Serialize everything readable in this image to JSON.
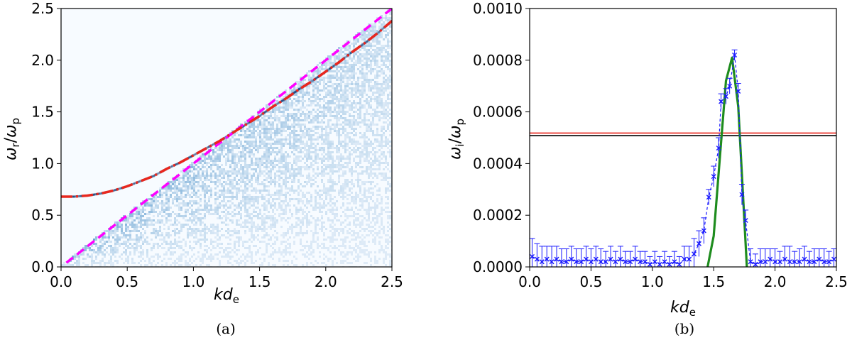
{
  "chart_data": [
    {
      "type": "heatmap",
      "panel_label": "(a)",
      "xlabel_main": "kd",
      "xlabel_sub": "e",
      "ylabel_num_main": "ω",
      "ylabel_num_sub": "r",
      "ylabel_den_main": "ω",
      "ylabel_den_sub": "p",
      "xlim": [
        0,
        2.5
      ],
      "ylim": [
        0,
        2.5
      ],
      "xticks": [
        "0.0",
        "0.5",
        "1.0",
        "1.5",
        "2.0",
        "2.5"
      ],
      "yticks": [
        "0.0",
        "0.5",
        "1.0",
        "1.5",
        "2.0",
        "2.5"
      ],
      "xtick_values": [
        0,
        0.5,
        1.0,
        1.5,
        2.0,
        2.5
      ],
      "ytick_values": [
        0,
        0.5,
        1.0,
        1.5,
        2.0,
        2.5
      ],
      "colormap": "Blues",
      "heatmap_region": "intensity concentrated below the light line ω = k, strongest along the dispersion curve",
      "series": [
        {
          "style": "red dash-dot",
          "color": "#e8271e",
          "x": [
            0.0,
            0.1,
            0.2,
            0.3,
            0.4,
            0.5,
            0.6,
            0.7,
            0.8,
            0.9,
            1.0,
            1.1,
            1.2,
            1.3,
            1.4,
            1.5,
            1.6,
            1.7,
            1.8,
            1.9,
            2.0,
            2.1,
            2.2,
            2.3,
            2.4,
            2.5
          ],
          "y": [
            0.68,
            0.68,
            0.69,
            0.71,
            0.74,
            0.78,
            0.83,
            0.88,
            0.95,
            1.01,
            1.08,
            1.15,
            1.22,
            1.3,
            1.38,
            1.46,
            1.55,
            1.63,
            1.72,
            1.8,
            1.89,
            1.98,
            2.08,
            2.17,
            2.27,
            2.38
          ]
        },
        {
          "style": "magenta dashed",
          "color": "#ff00ff",
          "x": [
            0.04,
            2.5
          ],
          "y": [
            0.04,
            2.5
          ]
        }
      ]
    },
    {
      "type": "line",
      "panel_label": "(b)",
      "xlabel_main": "kd",
      "xlabel_sub": "e",
      "ylabel_num_main": "ω",
      "ylabel_num_sub": "i",
      "ylabel_den_main": "ω",
      "ylabel_den_sub": "p",
      "xlim": [
        0,
        2.5
      ],
      "ylim": [
        0,
        0.001
      ],
      "xticks": [
        "0.0",
        "0.5",
        "1.0",
        "1.5",
        "2.0",
        "2.5"
      ],
      "yticks": [
        "0.0000",
        "0.0002",
        "0.0004",
        "0.0006",
        "0.0008",
        "0.0010"
      ],
      "xtick_values": [
        0,
        0.5,
        1.0,
        1.5,
        2.0,
        2.5
      ],
      "ytick_values": [
        0,
        0.0002,
        0.0004,
        0.0006,
        0.0008,
        0.001
      ],
      "hlines": [
        {
          "color": "#e8271e",
          "y": 0.000518
        },
        {
          "color": "#000000",
          "y": 0.000508
        }
      ],
      "series": [
        {
          "style": "green solid",
          "color": "#1e8c1e",
          "x": [
            1.45,
            1.5,
            1.55,
            1.6,
            1.65,
            1.7,
            1.75,
            1.77
          ],
          "y": [
            0.0,
            0.00012,
            0.00042,
            0.00072,
            0.00081,
            0.00062,
            0.00018,
            0.0
          ]
        },
        {
          "style": "blue dashed with x markers and error bars",
          "color": "#1a1aff",
          "points": [
            [
              0.02,
              4e-05,
              7e-05
            ],
            [
              0.06,
              3e-05,
              6e-05
            ],
            [
              0.1,
              2e-05,
              6e-05
            ],
            [
              0.14,
              3e-05,
              5e-05
            ],
            [
              0.18,
              2e-05,
              6e-05
            ],
            [
              0.22,
              3e-05,
              5e-05
            ],
            [
              0.26,
              2e-05,
              5e-05
            ],
            [
              0.3,
              2e-05,
              5e-05
            ],
            [
              0.34,
              3e-05,
              5e-05
            ],
            [
              0.38,
              2e-05,
              5e-05
            ],
            [
              0.42,
              2e-05,
              5e-05
            ],
            [
              0.46,
              3e-05,
              5e-05
            ],
            [
              0.5,
              2e-05,
              5e-05
            ],
            [
              0.54,
              3e-05,
              5e-05
            ],
            [
              0.58,
              2e-05,
              5e-05
            ],
            [
              0.62,
              2e-05,
              4e-05
            ],
            [
              0.66,
              3e-05,
              5e-05
            ],
            [
              0.7,
              2e-05,
              4e-05
            ],
            [
              0.74,
              3e-05,
              5e-05
            ],
            [
              0.78,
              2e-05,
              4e-05
            ],
            [
              0.82,
              2e-05,
              4e-05
            ],
            [
              0.86,
              3e-05,
              5e-05
            ],
            [
              0.9,
              2e-05,
              4e-05
            ],
            [
              0.94,
              2e-05,
              4e-05
            ],
            [
              0.98,
              1e-05,
              3e-05
            ],
            [
              1.02,
              2e-05,
              4e-05
            ],
            [
              1.06,
              1e-05,
              3e-05
            ],
            [
              1.1,
              2e-05,
              4e-05
            ],
            [
              1.14,
              1e-05,
              3e-05
            ],
            [
              1.18,
              2e-05,
              4e-05
            ],
            [
              1.22,
              1e-05,
              3e-05
            ],
            [
              1.26,
              3e-05,
              5e-05
            ],
            [
              1.3,
              3e-05,
              5e-05
            ],
            [
              1.34,
              5e-05,
              6e-05
            ],
            [
              1.38,
              9e-05,
              5e-05
            ],
            [
              1.42,
              0.00014,
              5e-05
            ],
            [
              1.46,
              0.00027,
              3e-05
            ],
            [
              1.5,
              0.00035,
              4e-05
            ],
            [
              1.54,
              0.00046,
              4e-05
            ],
            [
              1.56,
              0.00064,
              3e-05
            ],
            [
              1.6,
              0.00066,
              3e-05
            ],
            [
              1.63,
              0.0007,
              3e-05
            ],
            [
              1.67,
              0.00082,
              2e-05
            ],
            [
              1.7,
              0.00068,
              3e-05
            ],
            [
              1.73,
              0.00028,
              4e-05
            ],
            [
              1.76,
              0.00018,
              4e-05
            ],
            [
              1.8,
              2e-05,
              5e-05
            ],
            [
              1.84,
              1e-05,
              4e-05
            ],
            [
              1.88,
              2e-05,
              5e-05
            ],
            [
              1.92,
              2e-05,
              5e-05
            ],
            [
              1.96,
              3e-05,
              4e-05
            ],
            [
              2.0,
              2e-05,
              5e-05
            ],
            [
              2.04,
              2e-05,
              4e-05
            ],
            [
              2.08,
              3e-05,
              5e-05
            ],
            [
              2.12,
              2e-05,
              6e-05
            ],
            [
              2.16,
              2e-05,
              4e-05
            ],
            [
              2.2,
              2e-05,
              5e-05
            ],
            [
              2.24,
              3e-05,
              5e-05
            ],
            [
              2.28,
              2e-05,
              4e-05
            ],
            [
              2.32,
              2e-05,
              5e-05
            ],
            [
              2.36,
              3e-05,
              4e-05
            ],
            [
              2.4,
              2e-05,
              5e-05
            ],
            [
              2.44,
              2e-05,
              4e-05
            ],
            [
              2.48,
              3e-05,
              4e-05
            ]
          ]
        }
      ]
    }
  ]
}
